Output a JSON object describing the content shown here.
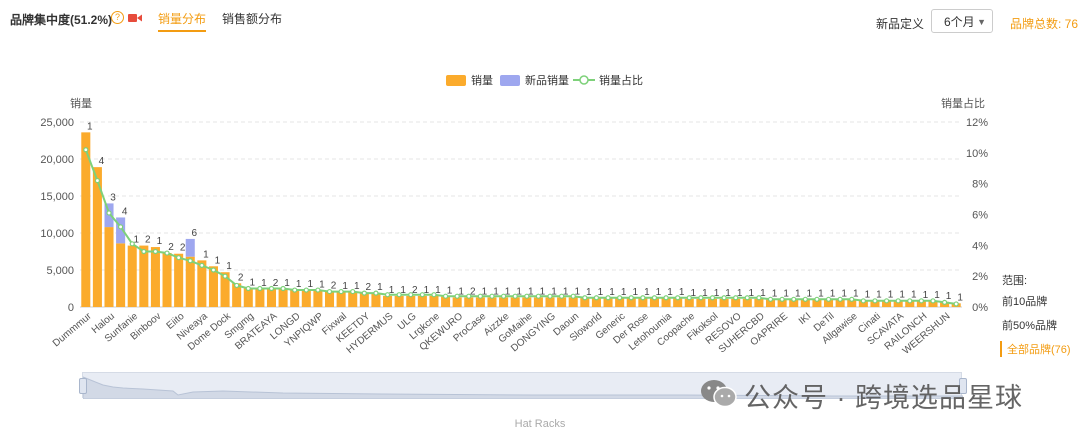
{
  "header": {
    "title": "品牌集中度(51.2%)",
    "tabs": [
      "销量分布",
      "销售额分布"
    ],
    "new_def_label": "新品定义",
    "period_select": "6个月",
    "brand_total": "品牌总数: 76"
  },
  "side_range": {
    "label": "范围:",
    "options": [
      "前10品牌",
      "前50%品牌",
      "全部品牌(76)"
    ],
    "active_index": 2
  },
  "slider": {
    "category": "Hat Racks"
  },
  "watermark": "公众号 · 跨境选品星球",
  "colors": {
    "sales": "#fbab2c",
    "new_sales": "#9ea7ef",
    "share": "#7ed17a",
    "accent": "#f39c12"
  },
  "chart_data": {
    "type": "bar",
    "legend": [
      "销量",
      "新品销量",
      "销量占比"
    ],
    "ylabel": "销量",
    "y2label": "销量占比",
    "ylim": [
      0,
      25000
    ],
    "yticks": [
      "0",
      "5,000",
      "10,000",
      "15,000",
      "20,000",
      "25,000"
    ],
    "y2lim": [
      0,
      12
    ],
    "y2ticks": [
      "0%",
      "2%",
      "4%",
      "6%",
      "8%",
      "10%",
      "12%"
    ],
    "grid": true,
    "x_tick_labels": [
      "Dummmur",
      "Halou",
      "Sunfanie",
      "Binboov",
      "Eiito",
      "Niveaya",
      "Dome Dock",
      "Smgmg",
      "BRATEAYA",
      "LONGD",
      "YNPIQWP",
      "Fixwal",
      "KEETDY",
      "HYDERMUS",
      "ULG",
      "Lrgkcne",
      "QKEWURO",
      "ProCase",
      "Aizzke",
      "GoMaihe",
      "DONGYING",
      "Daoun",
      "Sloworld",
      "Generic",
      "Der Rose",
      "Letohoumia",
      "Coopache",
      "Fikoksol",
      "RESOVO",
      "SUHERCBD",
      "OAPRIRE",
      "IKI",
      "DeTil",
      "Allgawise",
      "Cinati",
      "SCAVATA",
      "RAILONCH",
      "WEERSHUN"
    ],
    "x_tick_indices": [
      0,
      2,
      4,
      6,
      8,
      10,
      12,
      14,
      16,
      18,
      20,
      22,
      24,
      26,
      28,
      30,
      32,
      34,
      36,
      38,
      40,
      42,
      44,
      46,
      48,
      50,
      52,
      54,
      56,
      58,
      60,
      62,
      64,
      66,
      68,
      70,
      72,
      74
    ],
    "series": [
      {
        "name": "销量",
        "values": [
          23600,
          18900,
          10800,
          8600,
          8300,
          8300,
          8100,
          7300,
          7200,
          6800,
          6300,
          5500,
          4700,
          3200,
          2500,
          2400,
          2400,
          2400,
          2300,
          2300,
          2200,
          2100,
          2000,
          2000,
          1900,
          1900,
          1500,
          1500,
          1500,
          1500,
          1500,
          1400,
          1300,
          1300,
          1300,
          1300,
          1300,
          1300,
          1300,
          1300,
          1300,
          1300,
          1300,
          1200,
          1200,
          1200,
          1200,
          1200,
          1200,
          1200,
          1200,
          1200,
          1100,
          1100,
          1100,
          1100,
          1100,
          1100,
          1100,
          1000,
          1000,
          1000,
          1000,
          1000,
          1000,
          1000,
          1000,
          900,
          900,
          900,
          900,
          900,
          800,
          800,
          700,
          500
        ]
      },
      {
        "name": "新品销量",
        "values": [
          0,
          0,
          3200,
          3500,
          0,
          0,
          0,
          0,
          0,
          2400,
          0,
          0,
          0,
          0,
          0,
          0,
          0,
          0,
          0,
          0,
          0,
          0,
          0,
          0,
          0,
          0,
          0,
          0,
          0,
          0,
          0,
          0,
          0,
          0,
          0,
          0,
          0,
          0,
          0,
          0,
          0,
          0,
          0,
          0,
          0,
          0,
          0,
          0,
          0,
          0,
          0,
          0,
          0,
          0,
          0,
          0,
          0,
          0,
          0,
          0,
          0,
          0,
          0,
          0,
          0,
          0,
          0,
          0,
          0,
          0,
          0,
          0,
          0,
          0,
          0,
          0
        ]
      },
      {
        "name": "销量占比",
        "values": [
          10.2,
          8.2,
          6.1,
          5.2,
          4.1,
          3.6,
          3.6,
          3.5,
          3.2,
          3.0,
          2.7,
          2.4,
          2.0,
          1.4,
          1.2,
          1.2,
          1.2,
          1.2,
          1.1,
          1.1,
          1.1,
          1.0,
          1.0,
          1.0,
          0.9,
          0.9,
          0.8,
          0.8,
          0.8,
          0.8,
          0.8,
          0.7,
          0.7,
          0.7,
          0.7,
          0.7,
          0.7,
          0.7,
          0.7,
          0.7,
          0.7,
          0.7,
          0.7,
          0.6,
          0.6,
          0.6,
          0.6,
          0.6,
          0.6,
          0.6,
          0.6,
          0.6,
          0.6,
          0.6,
          0.6,
          0.6,
          0.6,
          0.6,
          0.6,
          0.5,
          0.5,
          0.5,
          0.5,
          0.5,
          0.5,
          0.5,
          0.5,
          0.4,
          0.4,
          0.4,
          0.4,
          0.4,
          0.4,
          0.4,
          0.3,
          0.2
        ]
      }
    ],
    "bar_labels": [
      "1",
      "4",
      "3",
      "4",
      "1",
      "2",
      "1",
      "2",
      "2",
      "6",
      "1",
      "1",
      "1",
      "2",
      "1",
      "1",
      "2",
      "1",
      "1",
      "1",
      "1",
      "2",
      "1",
      "1",
      "2",
      "1",
      "1",
      "1",
      "2",
      "1",
      "1",
      "1",
      "1",
      "2",
      "1",
      "1",
      "1",
      "1",
      "1",
      "1",
      "1",
      "1",
      "1",
      "1",
      "1",
      "1",
      "1",
      "1",
      "1",
      "1",
      "1",
      "1",
      "1",
      "1",
      "1",
      "1",
      "1",
      "1",
      "1",
      "1",
      "1",
      "1",
      "1",
      "1",
      "1",
      "1",
      "1",
      "1",
      "1",
      "1",
      "1",
      "1",
      "1",
      "1",
      "1",
      "1"
    ]
  }
}
